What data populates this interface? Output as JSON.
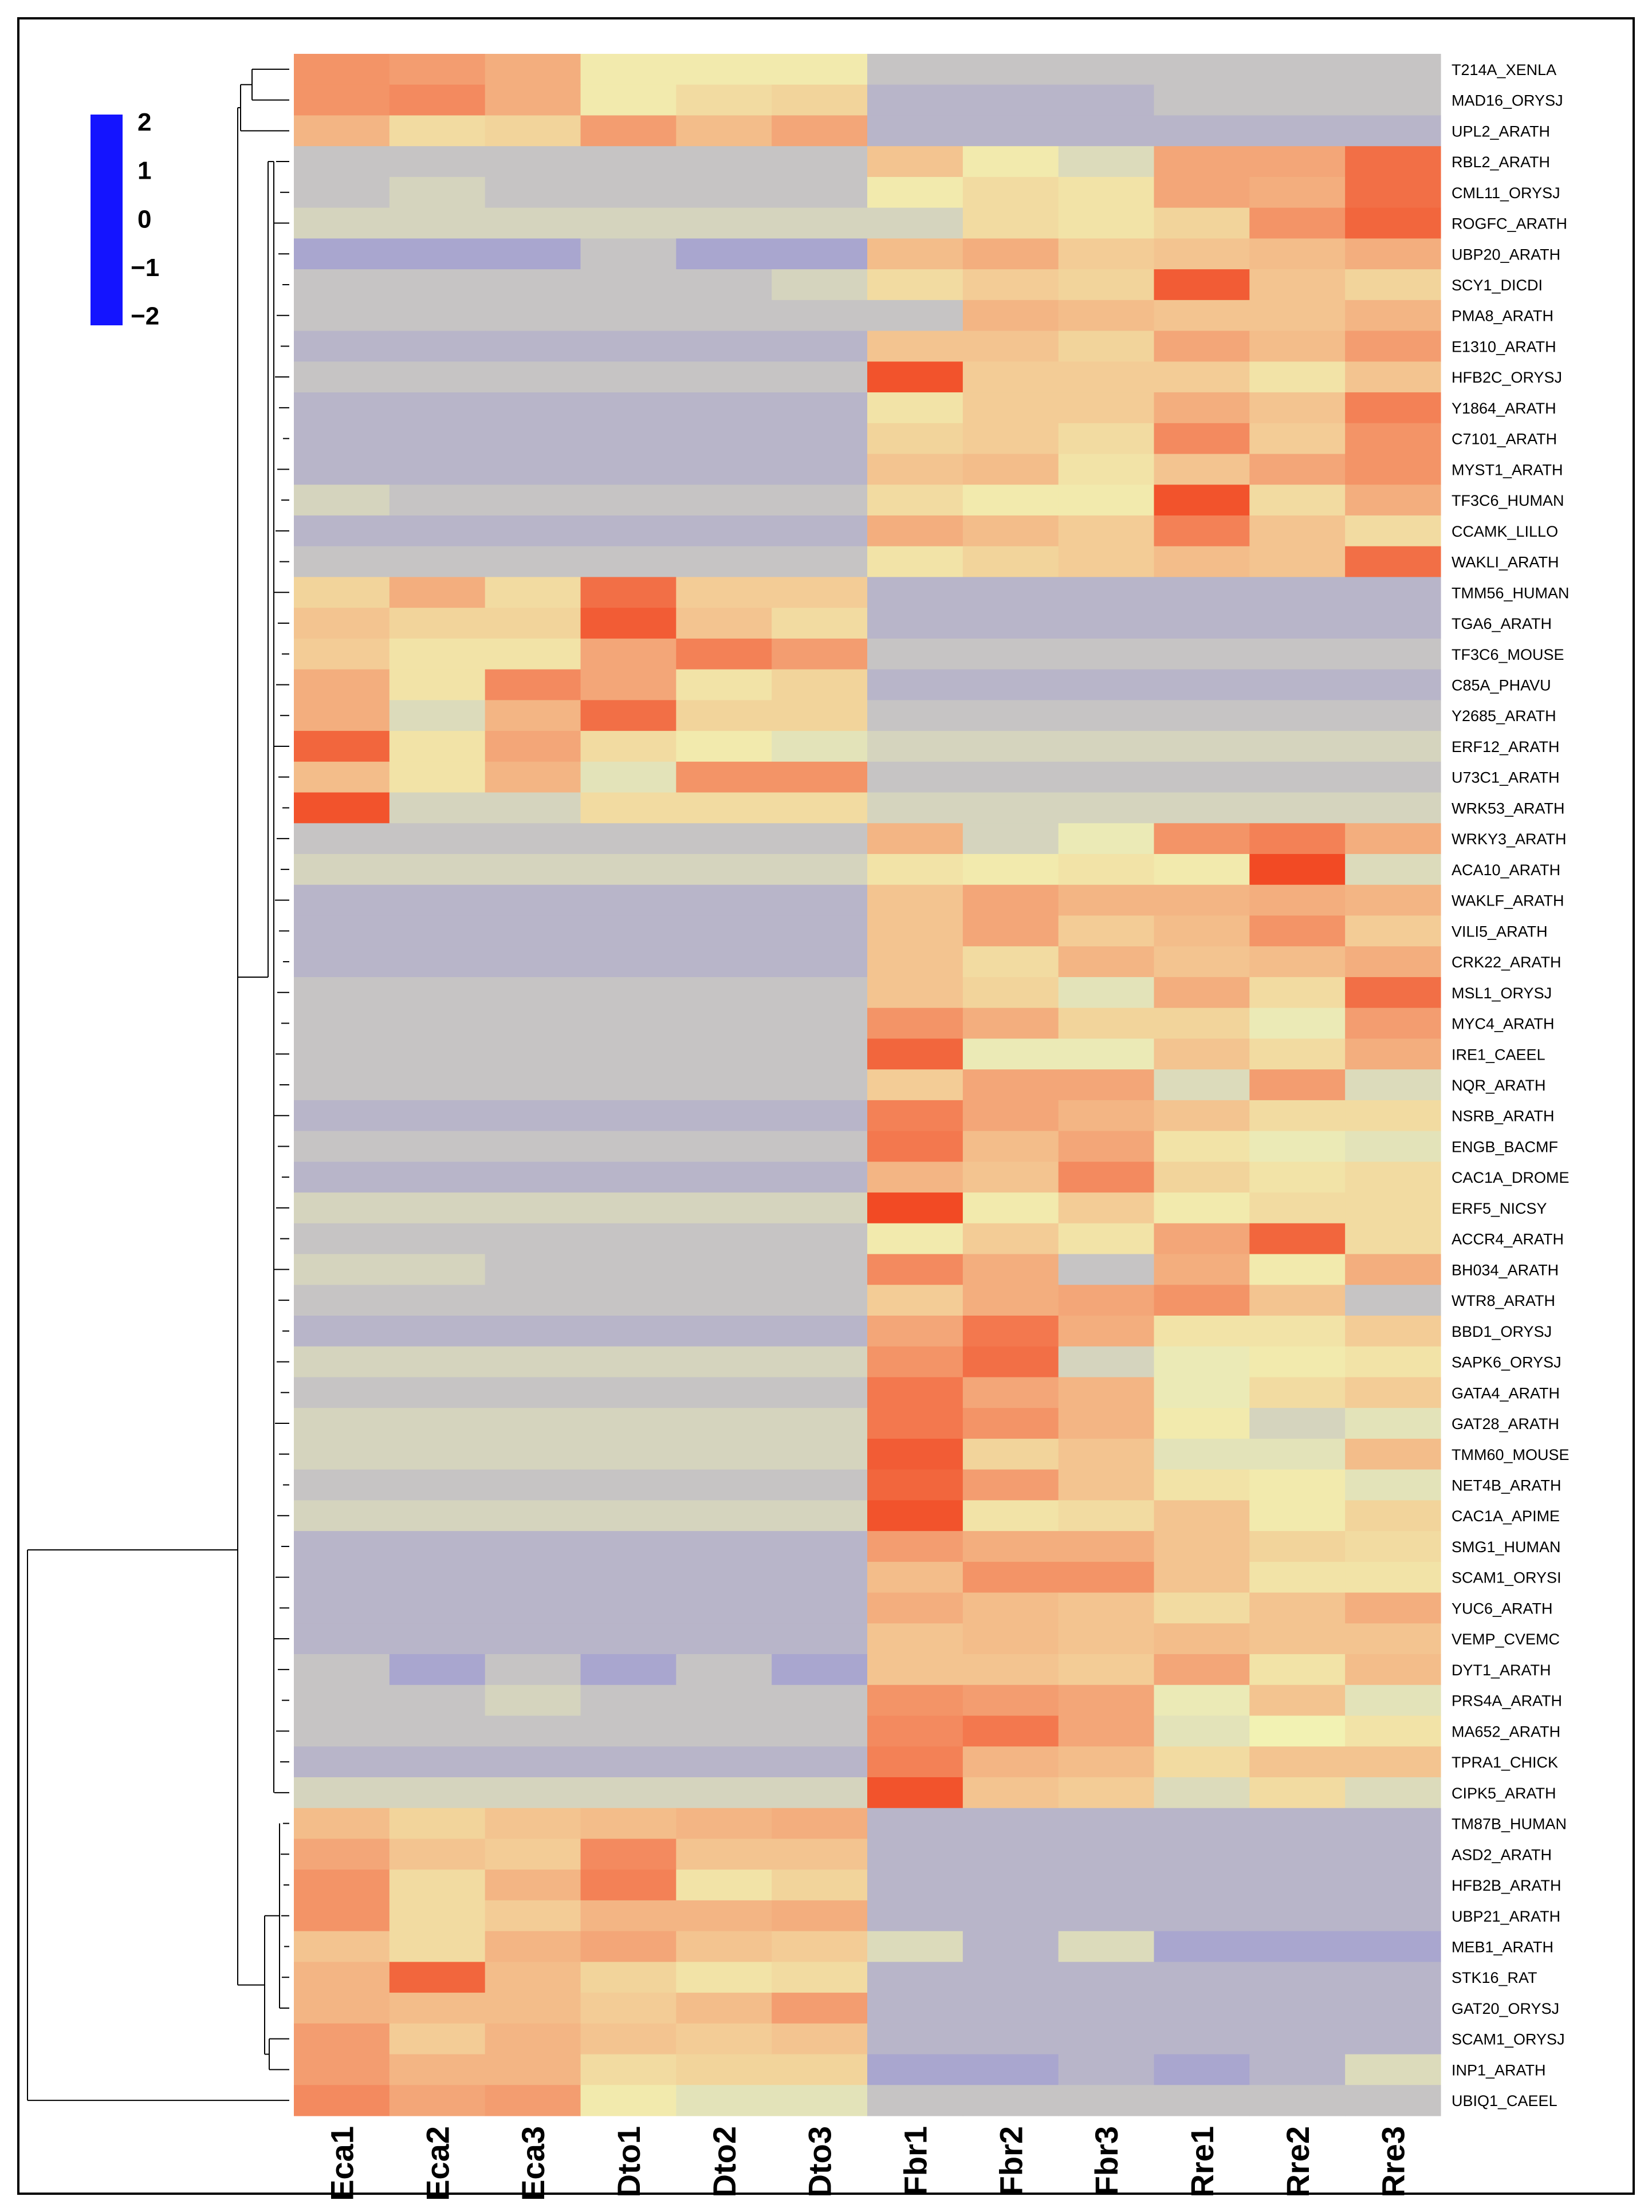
{
  "chart_data": {
    "type": "heatmap",
    "title": "",
    "columns": [
      "Eca1",
      "Eca2",
      "Eca3",
      "Dto1",
      "Dto2",
      "Dto3",
      "Fbr1",
      "Fbr2",
      "Fbr3",
      "Rre1",
      "Rre2",
      "Rre3"
    ],
    "rows": [
      "T214A_XENLA",
      "MAD16_ORYSJ",
      "UPL2_ARATH",
      "RBL2_ARATH",
      "CML11_ORYSJ",
      "ROGFC_ARATH",
      "UBP20_ARATH",
      "SCY1_DICDI",
      "PMA8_ARATH",
      "E1310_ARATH",
      "HFB2C_ORYSJ",
      "Y1864_ARATH",
      "C7101_ARATH",
      "MYST1_ARATH",
      "TF3C6_HUMAN",
      "CCAMK_LILLO",
      "WAKLI_ARATH",
      "TMM56_HUMAN",
      "TGA6_ARATH",
      "TF3C6_MOUSE",
      "C85A_PHAVU",
      "Y2685_ARATH",
      "ERF12_ARATH",
      "U73C1_ARATH",
      "WRK53_ARATH",
      "WRKY3_ARATH",
      "ACA10_ARATH",
      "WAKLF_ARATH",
      "VILI5_ARATH",
      "CRK22_ARATH",
      "MSL1_ORYSJ",
      "MYC4_ARATH",
      "IRE1_CAEEL",
      "NQR_ARATH",
      "NSRB_ARATH",
      "ENGB_BACMF",
      "CAC1A_DROME",
      "ERF5_NICSY",
      "ACCR4_ARATH",
      "BH034_ARATH",
      "WTR8_ARATH",
      "BBD1_ORYSJ",
      "SAPK6_ORYSJ",
      "GATA4_ARATH",
      "GAT28_ARATH",
      "TMM60_MOUSE",
      "NET4B_ARATH",
      "CAC1A_APIME",
      "SMG1_HUMAN",
      "SCAM1_ORYSI",
      "YUC6_ARATH",
      "VEMP_CVEMC",
      "DYT1_ARATH",
      "PRS4A_ARATH",
      "MA652_ARATH",
      "TPRA1_CHICK",
      "CIPK5_ARATH",
      "TM87B_HUMAN",
      "ASD2_ARATH",
      "HFB2B_ARATH",
      "UBP21_ARATH",
      "MEB1_ARATH",
      "STK16_RAT",
      "GAT20_ORYSJ",
      "SCAM1_ORYSJ",
      "INP1_ARATH",
      "UBIQ1_CAEEL"
    ],
    "values": [
      [
        1.2,
        1.1,
        0.9,
        0.1,
        0.1,
        0.1,
        -0.6,
        -0.6,
        -0.6,
        -0.6,
        -0.6,
        -0.6
      ],
      [
        1.2,
        1.3,
        0.9,
        0.1,
        0.3,
        0.4,
        -0.8,
        -0.8,
        -0.8,
        -0.6,
        -0.6,
        -0.6
      ],
      [
        0.8,
        0.3,
        0.4,
        1.1,
        0.7,
        1.0,
        -0.8,
        -0.8,
        -0.8,
        -0.8,
        -0.8,
        -0.8
      ],
      [
        -0.6,
        -0.6,
        -0.6,
        -0.6,
        -0.6,
        -0.6,
        0.6,
        0.1,
        -0.3,
        1.0,
        1.0,
        1.6
      ],
      [
        -0.6,
        -0.4,
        -0.6,
        -0.6,
        -0.6,
        -0.6,
        0.1,
        0.3,
        0.2,
        1.0,
        0.9,
        1.6
      ],
      [
        -0.4,
        -0.4,
        -0.4,
        -0.4,
        -0.4,
        -0.4,
        -0.4,
        0.3,
        0.2,
        0.4,
        1.2,
        1.7
      ],
      [
        -1.0,
        -1.0,
        -1.0,
        -0.6,
        -1.0,
        -1.0,
        0.7,
        0.9,
        0.5,
        0.6,
        0.7,
        0.9
      ],
      [
        -0.6,
        -0.6,
        -0.6,
        -0.6,
        -0.6,
        -0.4,
        0.3,
        0.5,
        0.4,
        1.8,
        0.6,
        0.4
      ],
      [
        -0.6,
        -0.6,
        -0.6,
        -0.6,
        -0.6,
        -0.6,
        -0.6,
        0.8,
        0.7,
        0.6,
        0.6,
        0.8
      ],
      [
        -0.8,
        -0.8,
        -0.8,
        -0.8,
        -0.8,
        -0.8,
        0.6,
        0.6,
        0.4,
        1.0,
        0.7,
        1.1
      ],
      [
        -0.6,
        -0.6,
        -0.6,
        -0.6,
        -0.6,
        -0.6,
        1.9,
        0.5,
        0.5,
        0.5,
        0.2,
        0.6
      ],
      [
        -0.8,
        -0.8,
        -0.8,
        -0.8,
        -0.8,
        -0.8,
        0.2,
        0.5,
        0.5,
        0.9,
        0.6,
        1.4
      ],
      [
        -0.8,
        -0.8,
        -0.8,
        -0.8,
        -0.8,
        -0.8,
        0.4,
        0.5,
        0.3,
        1.3,
        0.5,
        1.2
      ],
      [
        -0.8,
        -0.8,
        -0.8,
        -0.8,
        -0.8,
        -0.8,
        0.6,
        0.7,
        0.2,
        0.6,
        1.0,
        1.2
      ],
      [
        -0.4,
        -0.6,
        -0.6,
        -0.6,
        -0.6,
        -0.6,
        0.3,
        0.1,
        0.1,
        1.9,
        0.3,
        0.9
      ],
      [
        -0.8,
        -0.8,
        -0.8,
        -0.8,
        -0.8,
        -0.8,
        0.9,
        0.7,
        0.5,
        1.4,
        0.6,
        0.3
      ],
      [
        -0.6,
        -0.6,
        -0.6,
        -0.6,
        -0.6,
        -0.6,
        0.2,
        0.4,
        0.5,
        0.7,
        0.6,
        1.6
      ],
      [
        0.4,
        0.9,
        0.3,
        1.6,
        0.5,
        0.5,
        -0.8,
        -0.8,
        -0.8,
        -0.8,
        -0.8,
        -0.8
      ],
      [
        0.6,
        0.4,
        0.4,
        1.8,
        0.6,
        0.3,
        -0.8,
        -0.8,
        -0.8,
        -0.8,
        -0.8,
        -0.8
      ],
      [
        0.5,
        0.2,
        0.2,
        1.0,
        1.4,
        1.1,
        -0.6,
        -0.6,
        -0.6,
        -0.6,
        -0.6,
        -0.6
      ],
      [
        0.9,
        0.2,
        1.3,
        1.0,
        0.2,
        0.4,
        -0.8,
        -0.8,
        -0.8,
        -0.8,
        -0.8,
        -0.8
      ],
      [
        0.9,
        -0.3,
        0.8,
        1.6,
        0.4,
        0.4,
        -0.6,
        -0.6,
        -0.6,
        -0.6,
        -0.6,
        -0.6
      ],
      [
        1.7,
        0.2,
        1.0,
        0.3,
        0.1,
        -0.2,
        -0.4,
        -0.4,
        -0.4,
        -0.4,
        -0.4,
        -0.4
      ],
      [
        0.7,
        0.2,
        0.8,
        -0.2,
        1.2,
        1.2,
        -0.6,
        -0.6,
        -0.6,
        -0.6,
        -0.6,
        -0.6
      ],
      [
        1.9,
        -0.4,
        -0.4,
        0.3,
        0.3,
        0.3,
        -0.4,
        -0.4,
        -0.4,
        -0.4,
        -0.4,
        -0.4
      ],
      [
        -0.6,
        -0.6,
        -0.6,
        -0.6,
        -0.6,
        -0.6,
        0.8,
        -0.4,
        -0.1,
        1.2,
        1.4,
        0.9
      ],
      [
        -0.4,
        -0.4,
        -0.4,
        -0.4,
        -0.4,
        -0.4,
        0.2,
        0.1,
        0.2,
        0.1,
        2.0,
        -0.3
      ],
      [
        -0.8,
        -0.8,
        -0.8,
        -0.8,
        -0.8,
        -0.8,
        0.6,
        1.0,
        0.8,
        0.8,
        0.9,
        0.8
      ],
      [
        -0.8,
        -0.8,
        -0.8,
        -0.8,
        -0.8,
        -0.8,
        0.6,
        1.0,
        0.5,
        0.7,
        1.2,
        0.5
      ],
      [
        -0.8,
        -0.8,
        -0.8,
        -0.8,
        -0.8,
        -0.8,
        0.6,
        0.3,
        0.8,
        0.6,
        0.7,
        0.9
      ],
      [
        -0.6,
        -0.6,
        -0.6,
        -0.6,
        -0.6,
        -0.6,
        0.6,
        0.4,
        -0.2,
        0.9,
        0.3,
        1.6
      ],
      [
        -0.6,
        -0.6,
        -0.6,
        -0.6,
        -0.6,
        -0.6,
        1.2,
        0.9,
        0.4,
        0.4,
        -0.1,
        1.1
      ],
      [
        -0.6,
        -0.6,
        -0.6,
        -0.6,
        -0.6,
        -0.6,
        1.7,
        -0.1,
        -0.1,
        0.6,
        0.3,
        0.9
      ],
      [
        -0.6,
        -0.6,
        -0.6,
        -0.6,
        -0.6,
        -0.6,
        0.5,
        1.0,
        1.0,
        -0.3,
        1.1,
        -0.3
      ],
      [
        -0.8,
        -0.8,
        -0.8,
        -0.8,
        -0.8,
        -0.8,
        1.4,
        1.0,
        0.8,
        0.6,
        0.3,
        0.3
      ],
      [
        -0.6,
        -0.6,
        -0.6,
        -0.6,
        -0.6,
        -0.6,
        1.5,
        0.7,
        1.0,
        0.2,
        -0.1,
        -0.2
      ],
      [
        -0.8,
        -0.8,
        -0.8,
        -0.8,
        -0.8,
        -0.8,
        0.8,
        0.6,
        1.3,
        0.4,
        0.2,
        0.3
      ],
      [
        -0.4,
        -0.4,
        -0.4,
        -0.4,
        -0.4,
        -0.4,
        2.0,
        0.1,
        0.5,
        0.1,
        0.3,
        0.3
      ],
      [
        -0.6,
        -0.6,
        -0.6,
        -0.6,
        -0.6,
        -0.6,
        0.1,
        0.5,
        0.2,
        1.0,
        1.7,
        0.3
      ],
      [
        -0.4,
        -0.4,
        -0.6,
        -0.6,
        -0.6,
        -0.6,
        1.3,
        0.9,
        -0.6,
        0.9,
        0.1,
        0.9
      ],
      [
        -0.6,
        -0.6,
        -0.6,
        -0.6,
        -0.6,
        -0.6,
        0.5,
        0.9,
        1.0,
        1.2,
        0.6,
        -0.6
      ],
      [
        -0.8,
        -0.8,
        -0.8,
        -0.8,
        -0.8,
        -0.8,
        1.0,
        1.5,
        0.9,
        0.2,
        0.2,
        0.5
      ],
      [
        -0.4,
        -0.4,
        -0.4,
        -0.4,
        -0.4,
        -0.4,
        1.2,
        1.6,
        -0.4,
        -0.1,
        0.1,
        0.2
      ],
      [
        -0.6,
        -0.6,
        -0.6,
        -0.6,
        -0.6,
        -0.6,
        1.5,
        1.0,
        0.8,
        -0.1,
        0.3,
        0.5
      ],
      [
        -0.4,
        -0.4,
        -0.4,
        -0.4,
        -0.4,
        -0.4,
        1.5,
        1.2,
        0.8,
        0.1,
        -0.4,
        -0.2
      ],
      [
        -0.4,
        -0.4,
        -0.4,
        -0.4,
        -0.4,
        -0.4,
        1.8,
        0.4,
        0.6,
        -0.2,
        -0.2,
        0.7
      ],
      [
        -0.6,
        -0.6,
        -0.6,
        -0.6,
        -0.6,
        -0.6,
        1.7,
        1.1,
        0.6,
        0.2,
        0.1,
        -0.2
      ],
      [
        -0.4,
        -0.4,
        -0.4,
        -0.4,
        -0.4,
        -0.4,
        1.9,
        0.2,
        0.3,
        0.6,
        0.1,
        0.4
      ],
      [
        -0.8,
        -0.8,
        -0.8,
        -0.8,
        -0.8,
        -0.8,
        1.1,
        0.9,
        0.9,
        0.6,
        0.4,
        0.3
      ],
      [
        -0.8,
        -0.8,
        -0.8,
        -0.8,
        -0.8,
        -0.8,
        0.7,
        1.2,
        1.2,
        0.6,
        0.2,
        0.2
      ],
      [
        -0.8,
        -0.8,
        -0.8,
        -0.8,
        -0.8,
        -0.8,
        0.9,
        0.7,
        0.6,
        0.3,
        0.6,
        0.9
      ],
      [
        -0.8,
        -0.8,
        -0.8,
        -0.8,
        -0.8,
        -0.8,
        0.6,
        0.7,
        0.6,
        0.7,
        0.6,
        0.6
      ],
      [
        -0.6,
        -1.0,
        -0.6,
        -1.0,
        -0.6,
        -1.0,
        0.6,
        0.6,
        0.5,
        1.0,
        0.2,
        0.7
      ],
      [
        -0.6,
        -0.6,
        -0.4,
        -0.6,
        -0.6,
        -0.6,
        1.2,
        1.1,
        1.0,
        -0.1,
        0.6,
        -0.2
      ],
      [
        -0.6,
        -0.6,
        -0.6,
        -0.6,
        -0.6,
        -0.6,
        1.3,
        1.5,
        1.0,
        -0.2,
        0.0,
        0.2
      ],
      [
        -0.8,
        -0.8,
        -0.8,
        -0.8,
        -0.8,
        -0.8,
        1.4,
        0.8,
        0.7,
        0.3,
        0.6,
        0.6
      ],
      [
        -0.4,
        -0.4,
        -0.4,
        -0.4,
        -0.4,
        -0.4,
        1.9,
        0.6,
        0.5,
        -0.3,
        0.3,
        -0.3
      ],
      [
        0.7,
        0.4,
        0.6,
        0.7,
        0.8,
        0.9,
        -0.8,
        -0.8,
        -0.8,
        -0.8,
        -0.8,
        -0.8
      ],
      [
        1.0,
        0.6,
        0.5,
        1.3,
        0.6,
        0.6,
        -0.8,
        -0.8,
        -0.8,
        -0.8,
        -0.8,
        -0.8
      ],
      [
        1.2,
        0.3,
        0.8,
        1.4,
        0.2,
        0.4,
        -0.8,
        -0.8,
        -0.8,
        -0.8,
        -0.8,
        -0.8
      ],
      [
        1.2,
        0.3,
        0.5,
        0.8,
        0.8,
        0.9,
        -0.8,
        -0.8,
        -0.8,
        -0.8,
        -0.8,
        -0.8
      ],
      [
        0.6,
        0.3,
        0.8,
        1.0,
        0.6,
        0.5,
        -0.3,
        -0.8,
        -0.3,
        -1.0,
        -1.0,
        -1.0
      ],
      [
        0.8,
        1.7,
        0.7,
        0.4,
        0.2,
        0.3,
        -0.8,
        -0.8,
        -0.8,
        -0.8,
        -0.8,
        -0.8
      ],
      [
        0.8,
        0.7,
        0.7,
        0.5,
        0.7,
        1.1,
        -0.8,
        -0.8,
        -0.8,
        -0.8,
        -0.8,
        -0.8
      ],
      [
        1.1,
        0.5,
        0.8,
        0.6,
        0.5,
        0.6,
        -0.8,
        -0.8,
        -0.8,
        -0.8,
        -0.8,
        -0.8
      ],
      [
        1.1,
        0.8,
        0.8,
        0.3,
        0.4,
        0.4,
        -1.0,
        -1.0,
        -0.8,
        -1.0,
        -0.8,
        -0.3
      ],
      [
        1.3,
        1.0,
        1.1,
        0.1,
        -0.2,
        -0.2,
        -0.6,
        -0.6,
        -0.6,
        -0.6,
        -0.6,
        -0.6
      ]
    ],
    "color_scale": {
      "min": -2,
      "max": 2,
      "stops": [
        {
          "value": -2,
          "color": "#1414ff"
        },
        {
          "value": -1,
          "color": "#a9a6cf"
        },
        {
          "value": 0,
          "color": "#f2f2b3"
        },
        {
          "value": 1,
          "color": "#f3a678"
        },
        {
          "value": 2,
          "color": "#f24a24"
        }
      ]
    },
    "legend": {
      "position": "top-left",
      "ticks": [
        "2",
        "1",
        "0",
        "−1",
        "−2"
      ],
      "tick_values": [
        2,
        1,
        0,
        -1,
        -2
      ]
    },
    "dendrogram": "rows"
  }
}
